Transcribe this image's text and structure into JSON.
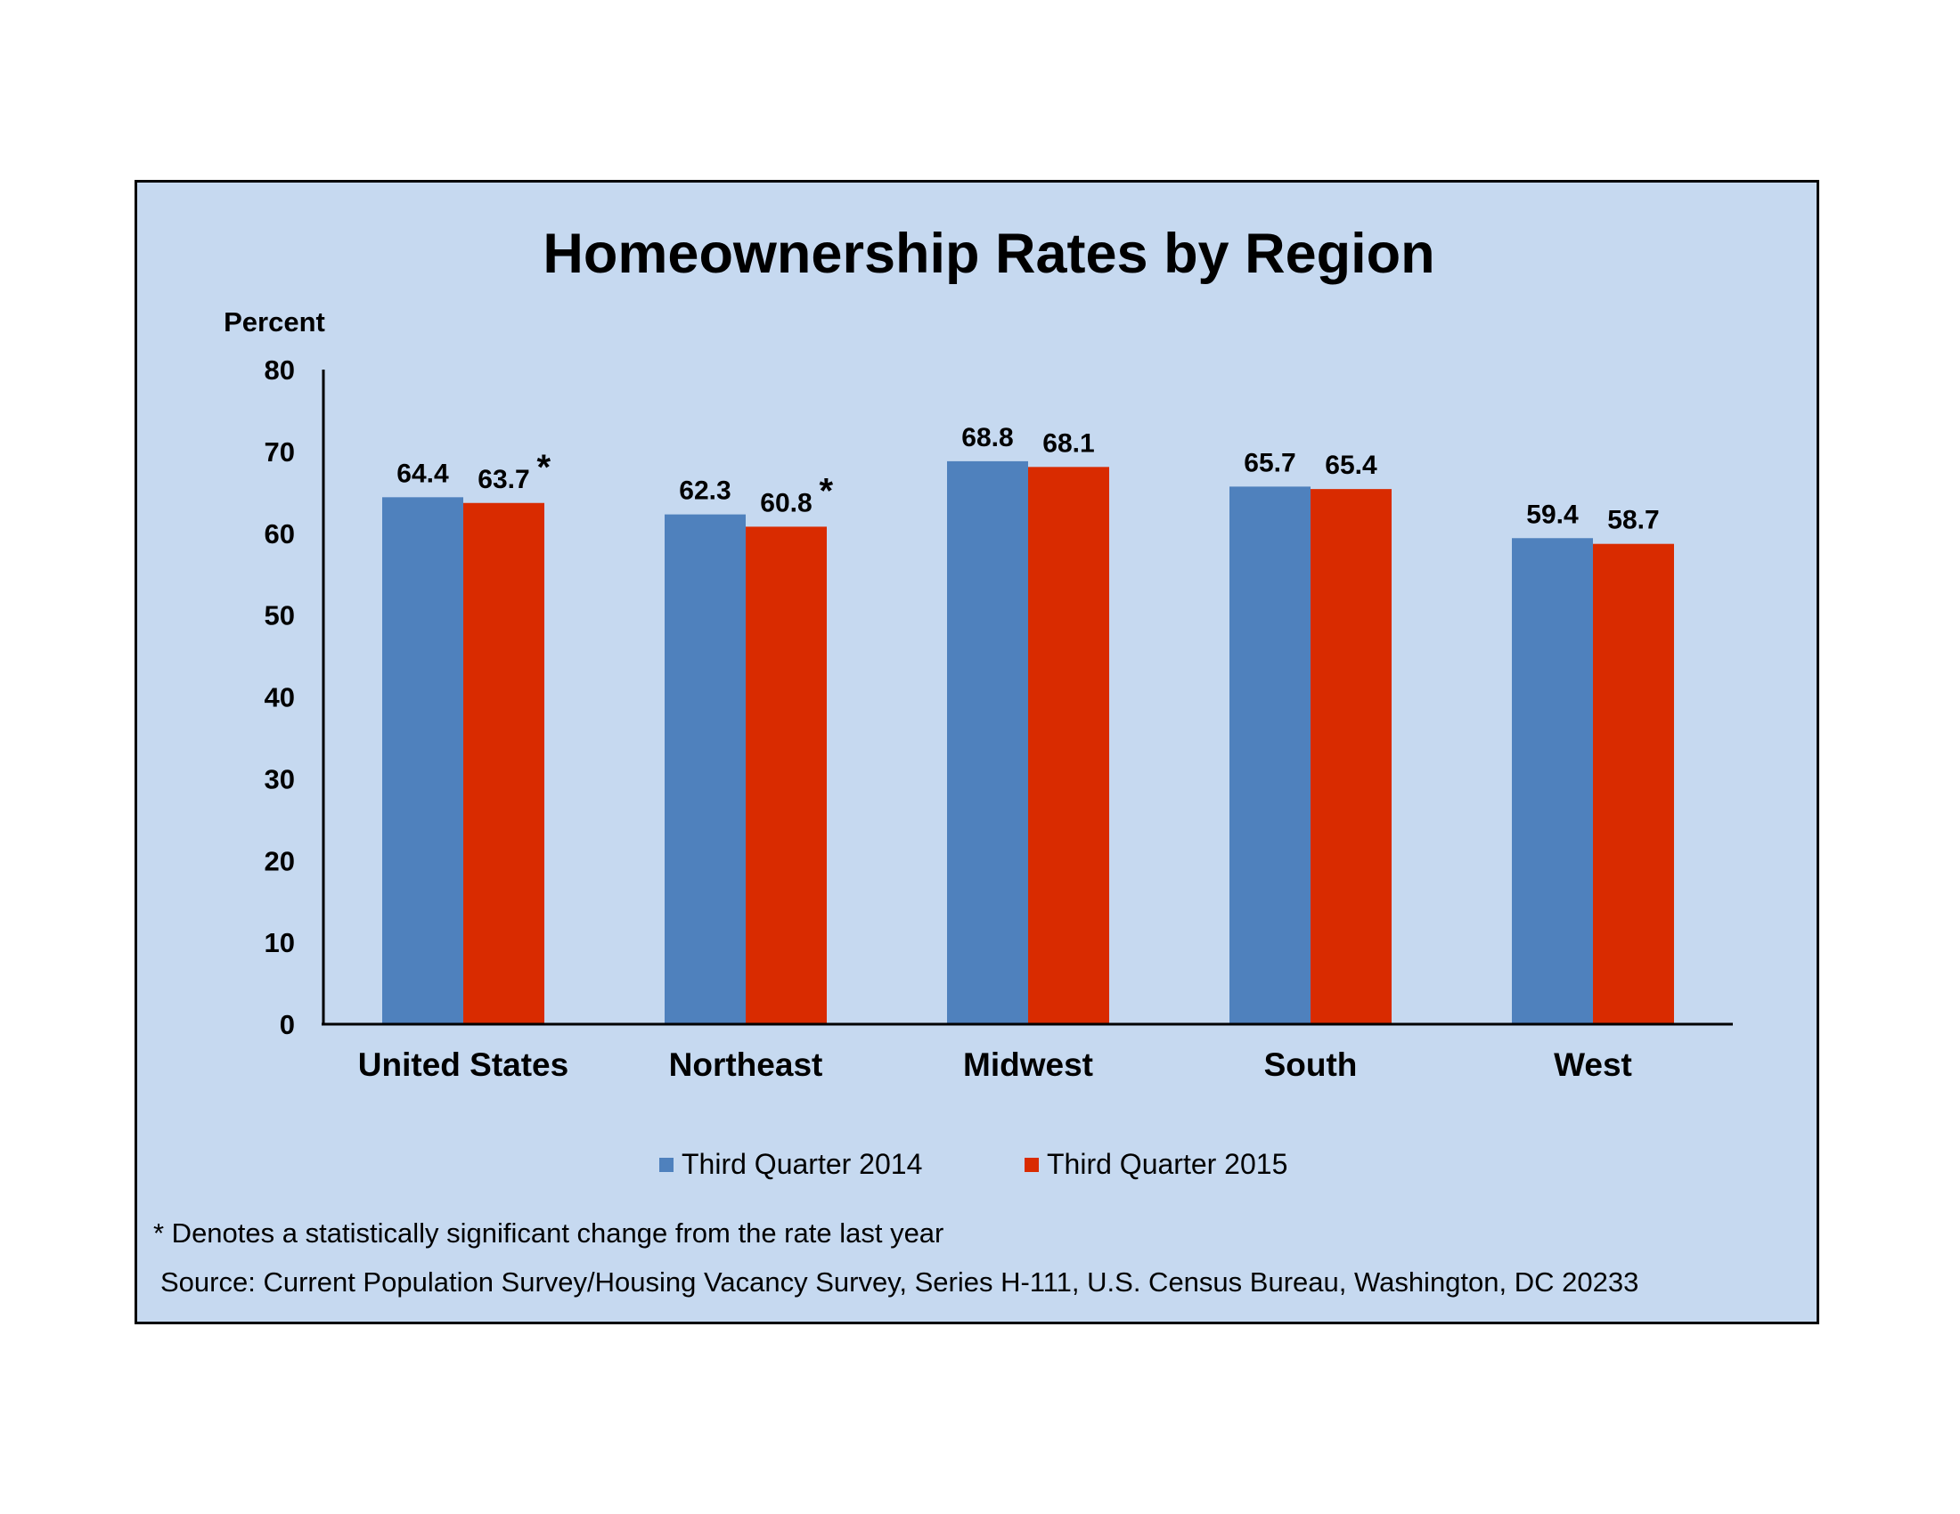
{
  "chart_data": {
    "type": "bar",
    "title": "Homeownership Rates by Region",
    "ylabel": "Percent",
    "xlabel": "",
    "ylim": [
      0,
      80
    ],
    "yticks": [
      0,
      10,
      20,
      30,
      40,
      50,
      60,
      70,
      80
    ],
    "categories": [
      "United States",
      "Northeast",
      "Midwest",
      "South",
      "West"
    ],
    "series": [
      {
        "name": "Third Quarter 2014",
        "color": "#4f81bd",
        "values": [
          64.4,
          62.3,
          68.8,
          65.7,
          59.4
        ],
        "labels": [
          "64.4",
          "62.3",
          "68.8",
          "65.7",
          "59.4"
        ],
        "significant": [
          false,
          false,
          false,
          false,
          false
        ]
      },
      {
        "name": "Third Quarter 2015",
        "color": "#d92b00",
        "values": [
          63.7,
          60.8,
          68.1,
          65.4,
          58.7
        ],
        "labels": [
          "63.7",
          "60.8",
          "68.1",
          "65.4",
          "58.7"
        ],
        "significant": [
          true,
          true,
          false,
          false,
          false
        ]
      }
    ],
    "significance_marker": "*",
    "legend_position": "bottom",
    "grid": false
  },
  "footnote": "* Denotes a statistically significant change from the rate last year",
  "source": "Source: Current Population Survey/Housing Vacancy Survey, Series H-111, U.S. Census Bureau, Washington, DC 20233",
  "colors": {
    "background": "#c6d9f0",
    "border": "#000000"
  }
}
